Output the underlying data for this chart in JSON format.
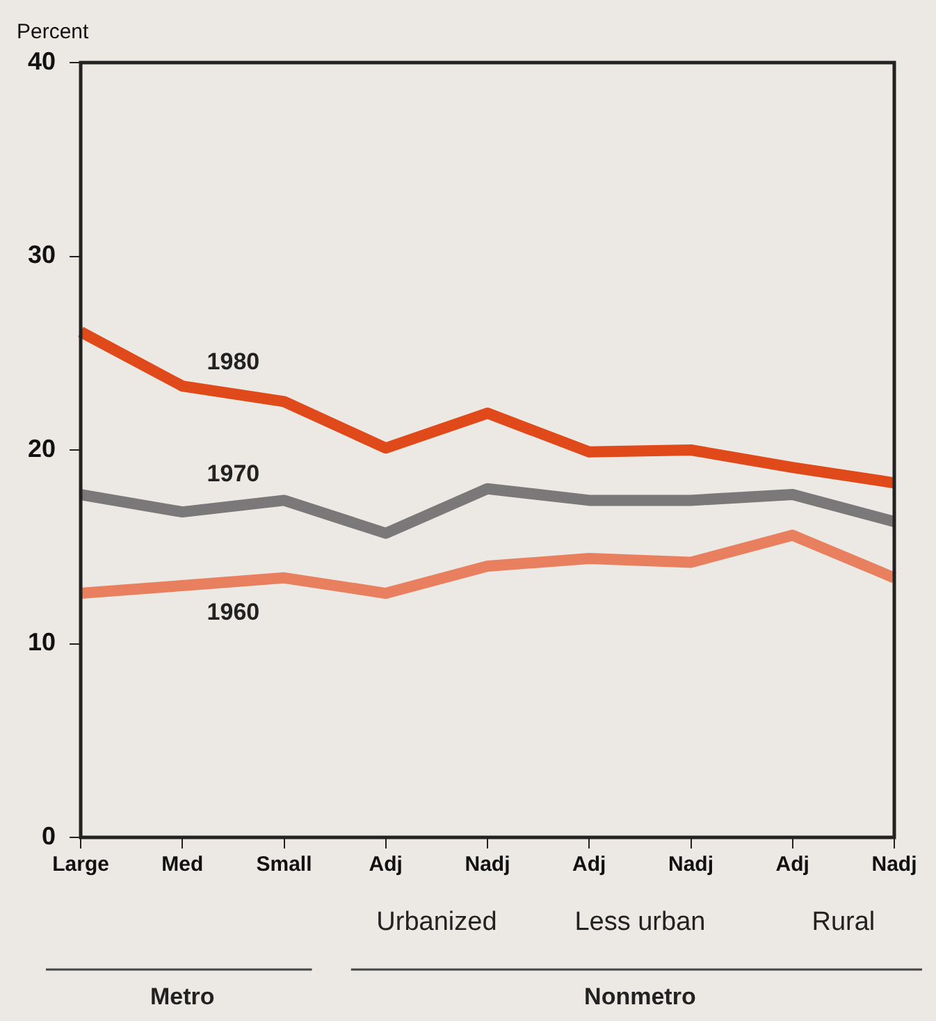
{
  "chart_data": {
    "type": "line",
    "ylabel": "Percent",
    "categories": [
      "Large",
      "Med",
      "Small",
      "Adj",
      "Nadj",
      "Adj",
      "Nadj",
      "Adj",
      "Nadj"
    ],
    "series": [
      {
        "name": "1980",
        "color": "#e04a1a",
        "values": [
          26.1,
          23.3,
          22.5,
          20.1,
          21.9,
          19.9,
          20.0,
          19.1,
          18.3
        ]
      },
      {
        "name": "1970",
        "color": "#7a7878",
        "values": [
          17.7,
          16.8,
          17.4,
          15.7,
          18.0,
          17.4,
          17.4,
          17.7,
          16.3
        ]
      },
      {
        "name": "1960",
        "color": "#e8805f",
        "values": [
          12.6,
          13.0,
          13.4,
          12.6,
          14.0,
          14.4,
          14.2,
          15.6,
          13.4
        ]
      }
    ],
    "ylim": [
      0,
      40
    ],
    "yticks": [
      0,
      10,
      20,
      30,
      40
    ],
    "grid": false,
    "legend": false,
    "marker": "none",
    "line_style": "solid",
    "annotations": [
      "Urbanized",
      "Less urban",
      "Rural",
      "Metro",
      "Nonmetro"
    ]
  }
}
